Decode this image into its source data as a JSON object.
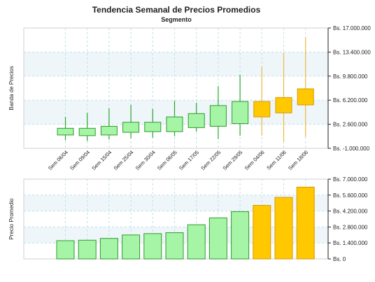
{
  "chart_data": {
    "title": "Tendencia Semanal de Precios Promedios",
    "subtitle": "Segmento",
    "categories": [
      "Sem 06/04",
      "Sem 09/04",
      "Sem 15/04",
      "Sem 25/04",
      "Sem 30/04",
      "Sem 06/05",
      "Sem 17/05",
      "Sem 22/05",
      "Sem 29/05",
      "Sem 04/06",
      "Sem 11/06",
      "Sem 18/06"
    ],
    "colors": {
      "actual_fill": "#a6f5a6",
      "actual_stroke": "#2f9a2f",
      "actual_wick": "#2aa82a",
      "forecast_fill": "#ffc800",
      "forecast_stroke": "#d79a00",
      "forecast_wick": "#f0b840",
      "band_fill": "#eef6f9",
      "grid": "#bfe0ea"
    },
    "charts": [
      {
        "type": "candlestick",
        "ylabel": "Banda de Precios",
        "ylim": [
          -1000000,
          17000000
        ],
        "ticks": [
          -1000000,
          2600000,
          6200000,
          9800000,
          13400000,
          17000000
        ],
        "tick_labels": [
          "Bs. -1.000.000",
          "Bs. 2.600.000",
          "Bs. 6.200.000",
          "Bs. 9.800.000",
          "Bs. 13.400.000",
          "Bs. 17.000.000"
        ],
        "series": [
          {
            "low": 200000,
            "q1": 1000000,
            "q3": 2000000,
            "high": 3700000,
            "kind": "actual"
          },
          {
            "low": 100000,
            "q1": 900000,
            "q3": 2000000,
            "high": 4300000,
            "kind": "actual"
          },
          {
            "low": 300000,
            "q1": 1000000,
            "q3": 2300000,
            "high": 5000000,
            "kind": "actual"
          },
          {
            "low": 500000,
            "q1": 1400000,
            "q3": 2900000,
            "high": 5500000,
            "kind": "actual"
          },
          {
            "low": 600000,
            "q1": 1500000,
            "q3": 2900000,
            "high": 4900000,
            "kind": "actual"
          },
          {
            "low": 800000,
            "q1": 1500000,
            "q3": 3700000,
            "high": 6100000,
            "kind": "actual"
          },
          {
            "low": 1500000,
            "q1": 2100000,
            "q3": 4200000,
            "high": 5800000,
            "kind": "actual"
          },
          {
            "low": 400000,
            "q1": 2300000,
            "q3": 5400000,
            "high": 8300000,
            "kind": "actual"
          },
          {
            "low": 900000,
            "q1": 2700000,
            "q3": 6000000,
            "high": 10000000,
            "kind": "actual"
          },
          {
            "low": 900000,
            "q1": 3700000,
            "q3": 6000000,
            "high": 11200000,
            "kind": "forecast"
          },
          {
            "low": 10000,
            "q1": 4300000,
            "q3": 6600000,
            "high": 13300000,
            "kind": "forecast"
          },
          {
            "low": 700000,
            "q1": 5500000,
            "q3": 7900000,
            "high": 15600000,
            "kind": "forecast"
          }
        ]
      },
      {
        "type": "bar",
        "ylabel": "Precio Promedio",
        "ylim": [
          0,
          7000000
        ],
        "ticks": [
          0,
          1400000,
          2800000,
          4200000,
          5600000,
          7000000
        ],
        "tick_labels": [
          "Bs. 0",
          "Bs. 1.400.000",
          "Bs. 2.800.000",
          "Bs. 4.200.000",
          "Bs. 5.600.000",
          "Bs. 7.000.000"
        ],
        "values": [
          1600000,
          1640000,
          1800000,
          2100000,
          2220000,
          2300000,
          3000000,
          3600000,
          4150000,
          4700000,
          5400000,
          6300000
        ],
        "kinds": [
          "actual",
          "actual",
          "actual",
          "actual",
          "actual",
          "actual",
          "actual",
          "actual",
          "actual",
          "forecast",
          "forecast",
          "forecast"
        ]
      }
    ]
  }
}
